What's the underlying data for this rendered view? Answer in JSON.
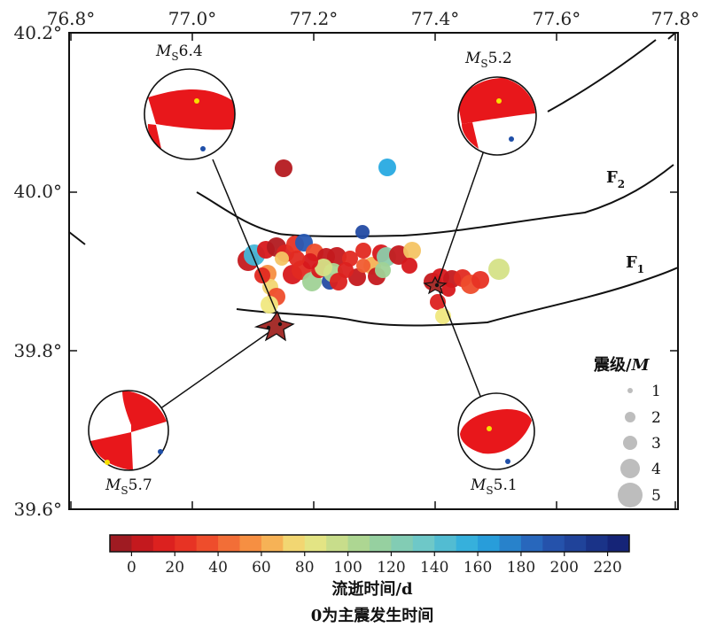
{
  "map": {
    "lon_ticks": [
      "76.8°",
      "77.0°",
      "77.2°",
      "77.4°",
      "77.6°",
      "77.8°"
    ],
    "lat_ticks": [
      "40.2°",
      "40.0°",
      "39.8°",
      "39.6°"
    ],
    "lon_range": [
      76.8,
      77.8
    ],
    "lat_range": [
      39.6,
      40.2
    ]
  },
  "faults": {
    "f1_main": "F",
    "f1_sub": "1",
    "f2_main": "F",
    "f2_sub": "2"
  },
  "mechanisms": [
    {
      "mag_prefix": "M",
      "mag_sub": "S",
      "mag_value": "6.4"
    },
    {
      "mag_prefix": "M",
      "mag_sub": "S",
      "mag_value": "5.2"
    },
    {
      "mag_prefix": "M",
      "mag_sub": "S",
      "mag_value": "5.7"
    },
    {
      "mag_prefix": "M",
      "mag_sub": "S",
      "mag_value": "5.1"
    }
  ],
  "legend": {
    "title_prefix": "震级/",
    "title_italic": "M",
    "sizes": [
      "1",
      "2",
      "3",
      "4",
      "5"
    ]
  },
  "colorbar": {
    "tick_labels": [
      "0",
      "20",
      "40",
      "60",
      "80",
      "100",
      "120",
      "140",
      "160",
      "180",
      "200",
      "220"
    ],
    "range": [
      -10,
      230
    ]
  },
  "caption": {
    "line1": "流逝时间/d",
    "line2": "0为主震发生时间"
  },
  "colors": {
    "beachball_red": "#e8171b",
    "star_fill": "#a52f2c",
    "compression_dot": "#f7e000",
    "tension_dot": "#1f4fa8"
  }
}
